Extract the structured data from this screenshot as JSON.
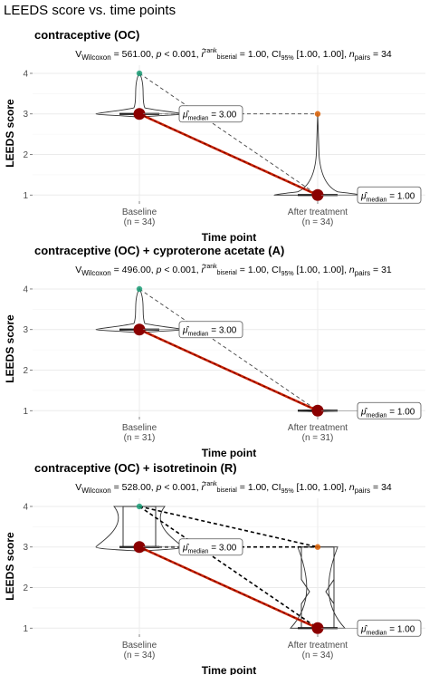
{
  "figure_title": "LEEDS score vs. time points",
  "colors": {
    "baseline_point": "#1b9e77",
    "after_point": "#d95f02",
    "median_dot": "#8b0000",
    "median_line": "#cc2200",
    "grid": "#ebebeb",
    "violin": "#333333"
  },
  "chart_data": [
    {
      "type": "violin",
      "title": "contraceptive (OC)",
      "stat": {
        "V": "561.00",
        "p": "< 0.001",
        "r": "1.00",
        "ci": "[1.00, 1.00]",
        "n": "34"
      },
      "xlabel": "Time point",
      "ylabel": "LEEDS score",
      "ylim": [
        0.85,
        4.2
      ],
      "yticks": [
        1,
        2,
        3,
        4
      ],
      "categories": [
        "Baseline",
        "After treatment"
      ],
      "category_n": [
        "(n = 34)",
        "(n = 34)"
      ],
      "medians": [
        3,
        1
      ],
      "median_labels": [
        "3.00",
        "1.00"
      ],
      "boxplot": false,
      "paired_lines": [
        [
          4,
          1
        ],
        [
          3,
          3
        ]
      ]
    },
    {
      "type": "violin",
      "title": "contraceptive (OC) + cyproterone acetate (A)",
      "stat": {
        "V": "496.00",
        "p": "< 0.001",
        "r": "1.00",
        "ci": "[1.00, 1.00]",
        "n": "31"
      },
      "xlabel": "Time point",
      "ylabel": "LEEDS score",
      "ylim": [
        0.85,
        4.2
      ],
      "yticks": [
        1,
        2,
        3,
        4
      ],
      "categories": [
        "Baseline",
        "After treatment"
      ],
      "category_n": [
        "(n = 31)",
        "(n = 31)"
      ],
      "medians": [
        3,
        1
      ],
      "median_labels": [
        "3.00",
        "1.00"
      ],
      "boxplot": false,
      "paired_lines": [
        [
          4,
          1
        ]
      ]
    },
    {
      "type": "violin",
      "title": "contraceptive (OC) + isotretinoin (R)",
      "stat": {
        "V": "528.00",
        "p": "< 0.001",
        "r": "1.00",
        "ci": "[1.00, 1.00]",
        "n": "34"
      },
      "xlabel": "Time point",
      "ylabel": "LEEDS score",
      "ylim": [
        0.85,
        4.2
      ],
      "yticks": [
        1,
        2,
        3,
        4
      ],
      "categories": [
        "Baseline",
        "After treatment"
      ],
      "category_n": [
        "(n = 34)",
        "(n = 34)"
      ],
      "medians": [
        3,
        1
      ],
      "median_labels": [
        "3.00",
        "1.00"
      ],
      "boxplot": true,
      "paired_lines": [
        [
          4,
          1
        ],
        [
          4,
          3
        ],
        [
          3,
          3
        ]
      ]
    }
  ]
}
